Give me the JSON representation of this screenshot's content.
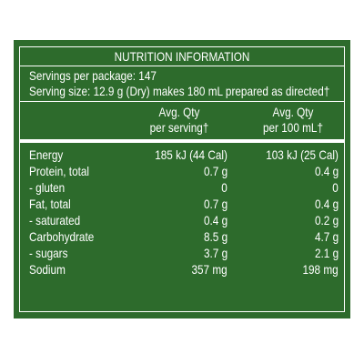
{
  "nutrition": {
    "title": "NUTRITION INFORMATION",
    "servings_per_package": "Servings per package: 147",
    "serving_size": "Serving size: 12.9 g (Dry) makes 180 mL prepared as directed†",
    "col_per_serving_line1": "Avg. Qty",
    "col_per_serving_line2": "per serving†",
    "col_per_100_line1": "Avg. Qty",
    "col_per_100_line2": "per 100 mL†",
    "rows": [
      {
        "label": "Energy",
        "per_serving": "185 kJ (44 Cal)",
        "per_100": "103 kJ (25 Cal)"
      },
      {
        "label": "Protein, total",
        "per_serving": "0.7 g",
        "per_100": "0.4 g"
      },
      {
        "label": "- gluten",
        "per_serving": "0",
        "per_100": "0"
      },
      {
        "label": "Fat, total",
        "per_serving": "0.7 g",
        "per_100": "0.4 g"
      },
      {
        "label": "- saturated",
        "per_serving": "0.4 g",
        "per_100": "0.2 g"
      },
      {
        "label": "Carbohydrate",
        "per_serving": "8.5 g",
        "per_100": "4.7 g"
      },
      {
        "label": "- sugars",
        "per_serving": "3.7 g",
        "per_100": "2.1 g"
      },
      {
        "label": "Sodium",
        "per_serving": "357 mg",
        "per_100": "198 mg"
      }
    ]
  },
  "colors": {
    "panel_background": "#2d6b2c",
    "text": "#ffffff",
    "page_background": "#ffffff"
  }
}
